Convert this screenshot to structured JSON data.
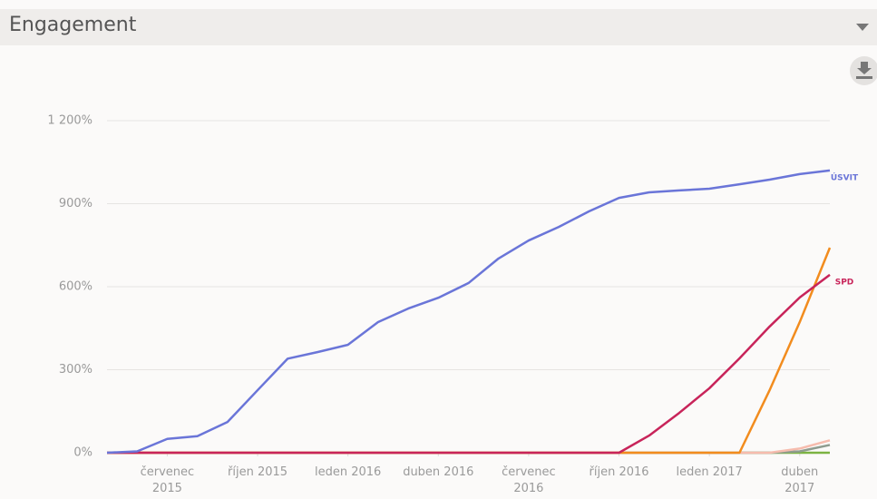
{
  "chart_data": {
    "type": "line",
    "title": "Engagement",
    "x": [
      "2015-05",
      "2015-06",
      "2015-07",
      "2015-08",
      "2015-09",
      "2015-10",
      "2015-11",
      "2015-12",
      "2016-01",
      "2016-02",
      "2016-03",
      "2016-04",
      "2016-05",
      "2016-06",
      "2016-07",
      "2016-08",
      "2016-09",
      "2016-10",
      "2016-11",
      "2016-12",
      "2017-01",
      "2017-02",
      "2017-03",
      "2017-04",
      "2017-05"
    ],
    "xlim": [
      "2015-05",
      "2017-05"
    ],
    "xticks": [
      {
        "value": "2015-07",
        "label": "červenec\n2015"
      },
      {
        "value": "2015-10",
        "label": "říjen 2015"
      },
      {
        "value": "2016-01",
        "label": "leden 2016"
      },
      {
        "value": "2016-04",
        "label": "duben 2016"
      },
      {
        "value": "2016-07",
        "label": "červenec\n2016"
      },
      {
        "value": "2016-10",
        "label": "říjen 2016"
      },
      {
        "value": "2017-01",
        "label": "leden 2017"
      },
      {
        "value": "2017-04",
        "label": "duben\n2017"
      }
    ],
    "ylim": [
      0,
      1200
    ],
    "yticks": [
      {
        "value": 0,
        "label": "0%"
      },
      {
        "value": 300,
        "label": "300%"
      },
      {
        "value": 600,
        "label": "600%"
      },
      {
        "value": 900,
        "label": "900%"
      },
      {
        "value": 1200,
        "label": "1 200%"
      }
    ],
    "grid": true,
    "series": [
      {
        "color": "#7cb342",
        "values": [
          0,
          0,
          0,
          0,
          0,
          0,
          0,
          0,
          0,
          0,
          0,
          0,
          0,
          0,
          0,
          0,
          0,
          0,
          0,
          0,
          0,
          0,
          0,
          0,
          0
        ]
      },
      {
        "color": "#8f9c8f",
        "values": [
          0,
          0,
          0,
          0,
          0,
          0,
          0,
          0,
          0,
          0,
          0,
          0,
          0,
          0,
          0,
          0,
          0,
          0,
          0,
          0,
          0,
          0,
          0,
          5,
          28
        ]
      },
      {
        "color": "#f6bcae",
        "values": [
          0,
          0,
          0,
          0,
          0,
          0,
          0,
          0,
          0,
          0,
          0,
          0,
          0,
          0,
          0,
          0,
          0,
          0,
          0,
          0,
          0,
          0,
          0,
          15,
          45
        ]
      },
      {
        "color": "#f28c1e",
        "values": [
          0,
          0,
          0,
          0,
          0,
          0,
          0,
          0,
          0,
          0,
          0,
          0,
          0,
          0,
          0,
          0,
          0,
          0,
          0,
          0,
          0,
          0,
          226,
          472,
          741
        ]
      },
      {
        "name": "SPD",
        "color": "#c8245a",
        "values": [
          0,
          0,
          0,
          0,
          0,
          0,
          0,
          0,
          0,
          0,
          0,
          0,
          0,
          0,
          0,
          0,
          0,
          0,
          62,
          144,
          233,
          341,
          456,
          561,
          643
        ]
      },
      {
        "name": "ÚSVIT",
        "color": "#6a75d8",
        "values": [
          0,
          5,
          50,
          60,
          111,
          226,
          340,
          364,
          390,
          472,
          521,
          560,
          613,
          702,
          767,
          816,
          872,
          921,
          941,
          948,
          954,
          970,
          987,
          1007,
          1020
        ]
      }
    ]
  }
}
